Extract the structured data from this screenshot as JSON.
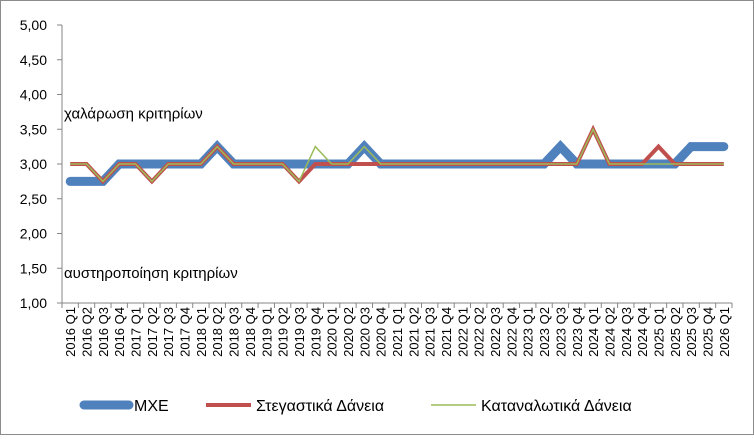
{
  "chart_data": {
    "type": "line",
    "title": "",
    "xlabel": "",
    "ylabel": "",
    "ylim": [
      1.0,
      5.0
    ],
    "yticks": [
      "1,00",
      "1,50",
      "2,00",
      "2,50",
      "3,00",
      "3,50",
      "4,00",
      "4,50",
      "5,00"
    ],
    "grid": false,
    "legend_position": "bottom",
    "categories": [
      "2016 Q1",
      "2016 Q2",
      "2016 Q3",
      "2016 Q4",
      "2017 Q1",
      "2017 Q2",
      "2017 Q3",
      "2017 Q4",
      "2018 Q1",
      "2018 Q2",
      "2018 Q3",
      "2018 Q4",
      "2019 Q1",
      "2019 Q2",
      "2019 Q3",
      "2019 Q4",
      "2020 Q1",
      "2020 Q2",
      "2020 Q3",
      "2020 Q4",
      "2021 Q1",
      "2021 Q2",
      "2021 Q3",
      "2021 Q4",
      "2022 Q1",
      "2022 Q2",
      "2022 Q3",
      "2022 Q4",
      "2023 Q1",
      "2023 Q2",
      "2023 Q3",
      "2023 Q4",
      "2024 Q1",
      "2024 Q2",
      "2024 Q3",
      "2024 Q4",
      "2025 Q1",
      "2025 Q2",
      "2025 Q3",
      "2025 Q4",
      "2026 Q1"
    ],
    "annotations": [
      {
        "text": "χαλάρωση κριτηρίων",
        "y": 3.73
      },
      {
        "text": "αυστηροποίηση κριτηρίων",
        "y": 1.43
      }
    ],
    "series": [
      {
        "name": "ΜΧΕ",
        "color": "#4f81bd",
        "values": [
          2.75,
          2.75,
          2.75,
          3.0,
          3.0,
          3.0,
          3.0,
          3.0,
          3.0,
          3.25,
          3.0,
          3.0,
          3.0,
          3.0,
          3.0,
          3.0,
          3.0,
          3.0,
          3.25,
          3.0,
          3.0,
          3.0,
          3.0,
          3.0,
          3.0,
          3.0,
          3.0,
          3.0,
          3.0,
          3.0,
          3.25,
          3.0,
          3.0,
          3.0,
          3.0,
          3.0,
          3.0,
          3.0,
          3.25,
          3.25,
          3.25
        ]
      },
      {
        "name": "Στεγαστικά Δάνεια",
        "color": "#c0504d",
        "values": [
          3.0,
          3.0,
          2.75,
          3.0,
          3.0,
          2.75,
          3.0,
          3.0,
          3.0,
          3.25,
          3.0,
          3.0,
          3.0,
          3.0,
          2.75,
          3.0,
          3.0,
          3.0,
          3.0,
          3.0,
          3.0,
          3.0,
          3.0,
          3.0,
          3.0,
          3.0,
          3.0,
          3.0,
          3.0,
          3.0,
          3.0,
          3.0,
          3.5,
          3.0,
          3.0,
          3.0,
          3.25,
          3.0,
          3.0,
          3.0,
          3.0
        ]
      },
      {
        "name": "Καταναλωτικά Δάνεια",
        "color": "#9bbb59",
        "values": [
          3.0,
          3.0,
          2.75,
          3.0,
          3.0,
          2.75,
          3.0,
          3.0,
          3.0,
          3.25,
          3.0,
          3.0,
          3.0,
          3.0,
          2.75,
          3.25,
          3.0,
          3.0,
          3.25,
          3.0,
          3.0,
          3.0,
          3.0,
          3.0,
          3.0,
          3.0,
          3.0,
          3.0,
          3.0,
          3.0,
          3.0,
          3.0,
          3.5,
          3.0,
          3.0,
          3.0,
          3.0,
          3.0,
          3.0,
          3.0,
          3.0
        ]
      }
    ]
  }
}
